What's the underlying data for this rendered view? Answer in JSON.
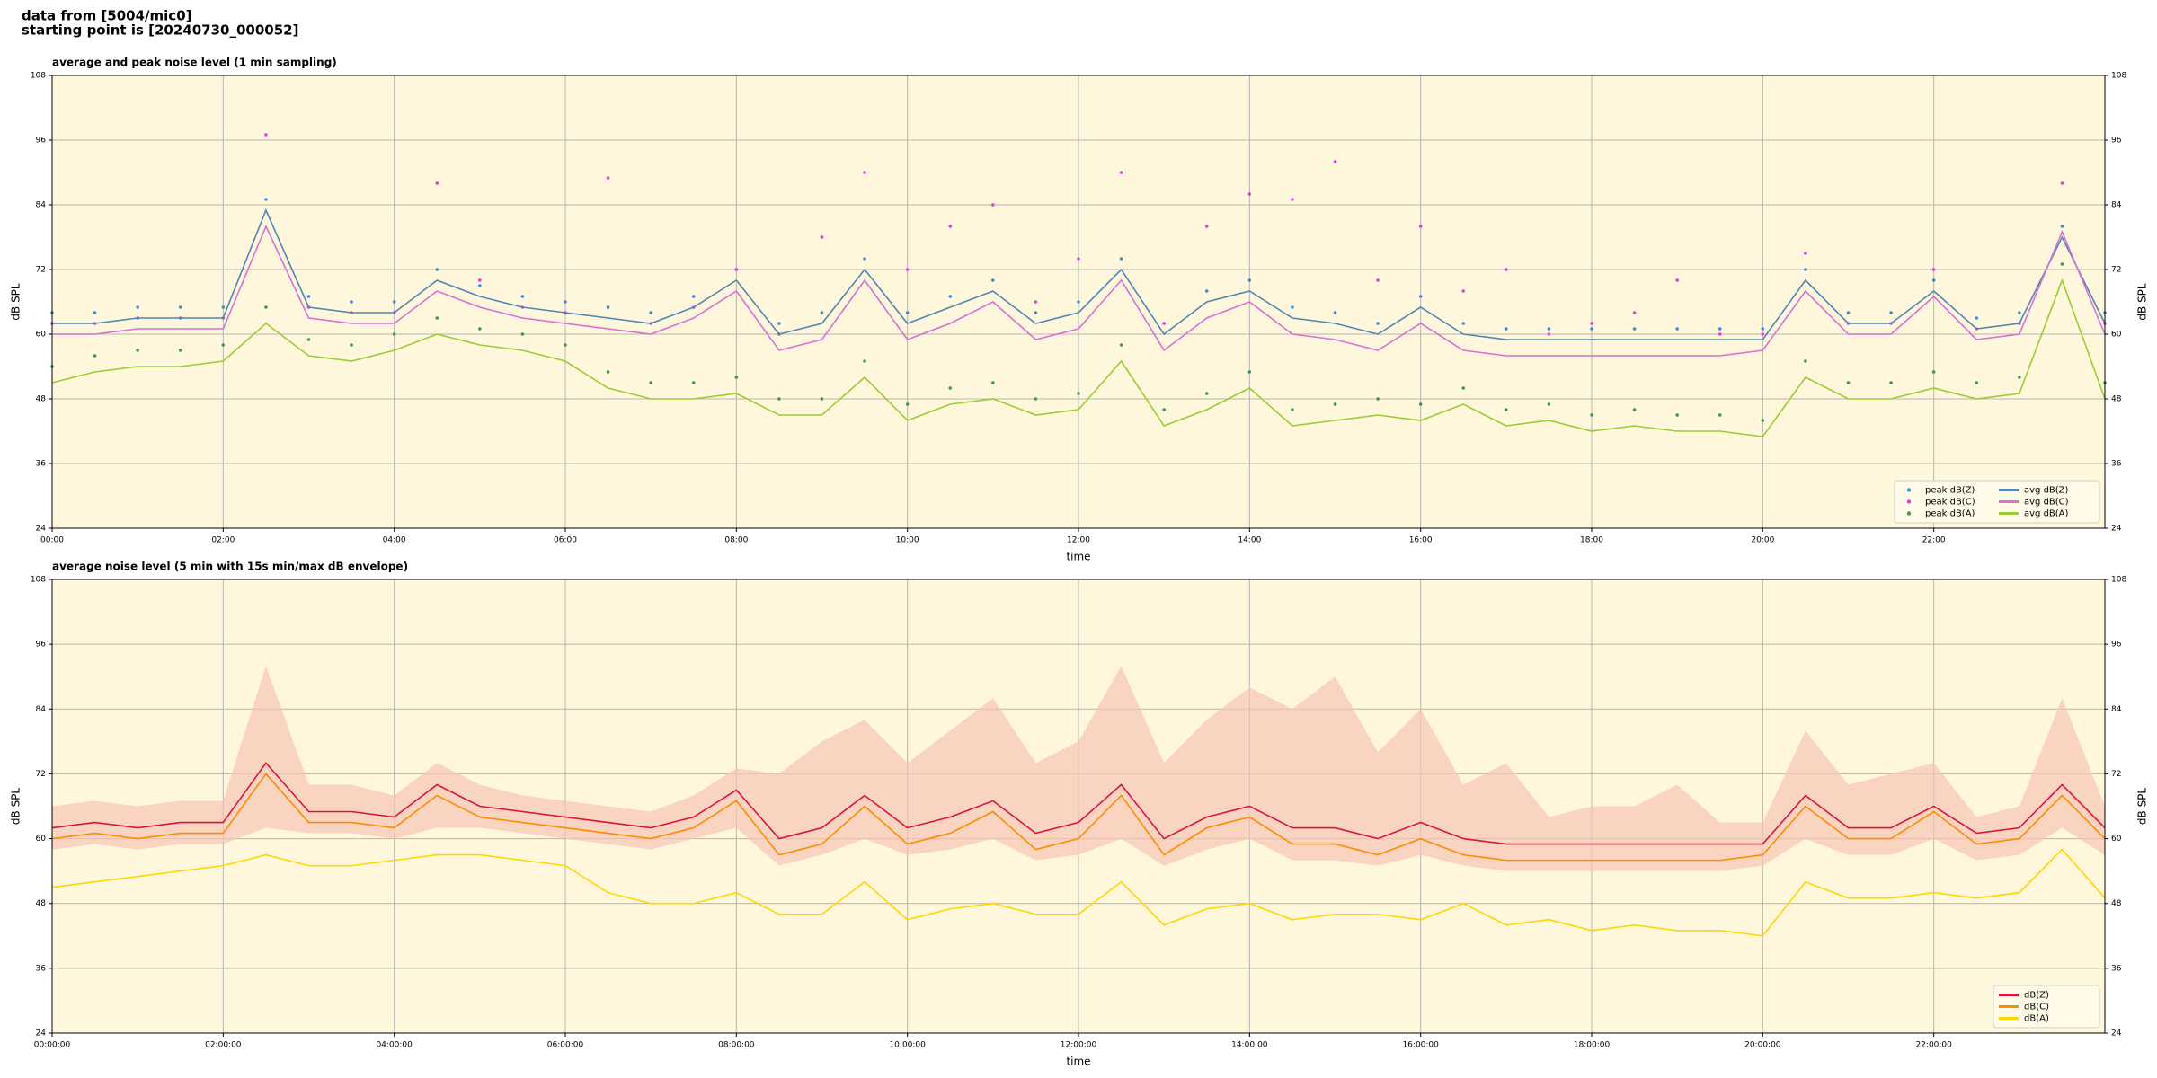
{
  "header": {
    "lines": [
      "data from [5004/mic0]",
      "starting point is [20240730_000052]"
    ]
  },
  "chart_data": [
    {
      "type": "line",
      "title": "average and peak noise level (1 min sampling)",
      "x_label": "time",
      "y_label": "dB SPL",
      "x": [
        0,
        0.5,
        1,
        1.5,
        2,
        2.5,
        3,
        3.5,
        4,
        4.5,
        5,
        5.5,
        6,
        6.5,
        7,
        7.5,
        8,
        8.5,
        9,
        9.5,
        10,
        10.5,
        11,
        11.5,
        12,
        12.5,
        13,
        13.5,
        14,
        14.5,
        15,
        15.5,
        16,
        16.5,
        17,
        17.5,
        18,
        18.5,
        19,
        19.5,
        20,
        20.5,
        21,
        21.5,
        22,
        22.5,
        23,
        23.5,
        24
      ],
      "xlim": [
        0,
        24
      ],
      "xticks": [
        {
          "value": 0,
          "label": "00:00"
        },
        {
          "value": 2,
          "label": "02:00"
        },
        {
          "value": 4,
          "label": "04:00"
        },
        {
          "value": 6,
          "label": "06:00"
        },
        {
          "value": 8,
          "label": "08:00"
        },
        {
          "value": 10,
          "label": "10:00"
        },
        {
          "value": 12,
          "label": "12:00"
        },
        {
          "value": 14,
          "label": "14:00"
        },
        {
          "value": 16,
          "label": "16:00"
        },
        {
          "value": 18,
          "label": "18:00"
        },
        {
          "value": 20,
          "label": "20:00"
        },
        {
          "value": 22,
          "label": "22:00"
        }
      ],
      "ylim": [
        24,
        108
      ],
      "yticks": [
        24,
        36,
        48,
        60,
        72,
        84,
        96,
        108
      ],
      "grid": true,
      "legend": "lower right",
      "legend_columns": 2,
      "series": [
        {
          "name": "peak dB(Z)",
          "mode": "markers",
          "color": "#3a8fd8",
          "values": [
            64,
            64,
            65,
            65,
            65,
            85,
            67,
            66,
            66,
            72,
            69,
            67,
            66,
            65,
            64,
            67,
            72,
            62,
            64,
            74,
            64,
            67,
            70,
            64,
            66,
            74,
            62,
            68,
            70,
            65,
            64,
            62,
            67,
            62,
            61,
            61,
            61,
            61,
            61,
            61,
            61,
            72,
            64,
            64,
            70,
            63,
            64,
            80,
            64
          ]
        },
        {
          "name": "peak dB(C)",
          "mode": "markers",
          "color": "#e040e0",
          "values": [
            62,
            62,
            63,
            63,
            63,
            97,
            65,
            64,
            64,
            88,
            70,
            65,
            64,
            89,
            62,
            65,
            72,
            60,
            78,
            90,
            72,
            80,
            84,
            66,
            74,
            90,
            62,
            80,
            86,
            85,
            92,
            70,
            80,
            68,
            72,
            60,
            62,
            64,
            70,
            60,
            60,
            75,
            62,
            62,
            72,
            61,
            62,
            88,
            62
          ]
        },
        {
          "name": "peak dB(A)",
          "mode": "markers",
          "color": "#3a9a5a",
          "values": [
            54,
            56,
            57,
            57,
            58,
            65,
            59,
            58,
            60,
            63,
            61,
            60,
            58,
            53,
            51,
            51,
            52,
            48,
            48,
            55,
            47,
            50,
            51,
            48,
            49,
            58,
            46,
            49,
            53,
            46,
            47,
            48,
            47,
            50,
            46,
            47,
            45,
            46,
            45,
            45,
            44,
            55,
            51,
            51,
            53,
            51,
            52,
            73,
            51
          ]
        },
        {
          "name": "avg dB(Z)",
          "mode": "lines",
          "color": "#4f86b4",
          "values": [
            62,
            62,
            63,
            63,
            63,
            83,
            65,
            64,
            64,
            70,
            67,
            65,
            64,
            63,
            62,
            65,
            70,
            60,
            62,
            72,
            62,
            65,
            68,
            62,
            64,
            72,
            60,
            66,
            68,
            63,
            62,
            60,
            65,
            60,
            59,
            59,
            59,
            59,
            59,
            59,
            59,
            70,
            62,
            62,
            68,
            61,
            62,
            78,
            62
          ]
        },
        {
          "name": "avg dB(C)",
          "mode": "lines",
          "color": "#da6fd6",
          "values": [
            60,
            60,
            61,
            61,
            61,
            80,
            63,
            62,
            62,
            68,
            65,
            63,
            62,
            61,
            60,
            63,
            68,
            57,
            59,
            70,
            59,
            62,
            66,
            59,
            61,
            70,
            57,
            63,
            66,
            60,
            59,
            57,
            62,
            57,
            56,
            56,
            56,
            56,
            56,
            56,
            57,
            68,
            60,
            60,
            67,
            59,
            60,
            79,
            60
          ]
        },
        {
          "name": "avg dB(A)",
          "mode": "lines",
          "color": "#9acd32",
          "values": [
            51,
            53,
            54,
            54,
            55,
            62,
            56,
            55,
            57,
            60,
            58,
            57,
            55,
            50,
            48,
            48,
            49,
            45,
            45,
            52,
            44,
            47,
            48,
            45,
            46,
            55,
            43,
            46,
            50,
            43,
            44,
            45,
            44,
            47,
            43,
            44,
            42,
            43,
            42,
            42,
            41,
            52,
            48,
            48,
            50,
            48,
            49,
            70,
            48
          ]
        }
      ]
    },
    {
      "type": "line",
      "title": "average noise level (5 min with 15s min/max dB envelope)",
      "x_label": "time",
      "y_label": "dB SPL",
      "x": [
        0,
        0.5,
        1,
        1.5,
        2,
        2.5,
        3,
        3.5,
        4,
        4.5,
        5,
        5.5,
        6,
        6.5,
        7,
        7.5,
        8,
        8.5,
        9,
        9.5,
        10,
        10.5,
        11,
        11.5,
        12,
        12.5,
        13,
        13.5,
        14,
        14.5,
        15,
        15.5,
        16,
        16.5,
        17,
        17.5,
        18,
        18.5,
        19,
        19.5,
        20,
        20.5,
        21,
        21.5,
        22,
        22.5,
        23,
        23.5,
        24
      ],
      "xlim": [
        0,
        24
      ],
      "xticks": [
        {
          "value": 0,
          "label": "00:00:00"
        },
        {
          "value": 2,
          "label": "02:00:00"
        },
        {
          "value": 4,
          "label": "04:00:00"
        },
        {
          "value": 6,
          "label": "06:00:00"
        },
        {
          "value": 8,
          "label": "08:00:00"
        },
        {
          "value": 10,
          "label": "10:00:00"
        },
        {
          "value": 12,
          "label": "12:00:00"
        },
        {
          "value": 14,
          "label": "14:00:00"
        },
        {
          "value": 16,
          "label": "16:00:00"
        },
        {
          "value": 18,
          "label": "18:00:00"
        },
        {
          "value": 20,
          "label": "20:00:00"
        },
        {
          "value": 22,
          "label": "22:00:00"
        }
      ],
      "ylim": [
        24,
        108
      ],
      "yticks": [
        24,
        36,
        48,
        60,
        72,
        84,
        96,
        108
      ],
      "grid": true,
      "legend": "lower right",
      "legend_columns": 1,
      "envelope": {
        "color": "#f7c4b4",
        "max": [
          66,
          67,
          66,
          67,
          67,
          92,
          70,
          70,
          68,
          74,
          70,
          68,
          67,
          66,
          65,
          68,
          73,
          72,
          78,
          82,
          74,
          80,
          86,
          74,
          78,
          92,
          74,
          82,
          88,
          84,
          90,
          76,
          84,
          70,
          74,
          64,
          66,
          66,
          70,
          63,
          63,
          80,
          70,
          72,
          74,
          64,
          66,
          86,
          66
        ],
        "min": [
          58,
          59,
          58,
          59,
          59,
          62,
          61,
          61,
          60,
          62,
          62,
          61,
          60,
          59,
          58,
          60,
          62,
          55,
          57,
          60,
          57,
          58,
          60,
          56,
          57,
          60,
          55,
          58,
          60,
          56,
          56,
          55,
          57,
          55,
          54,
          54,
          54,
          54,
          54,
          54,
          55,
          60,
          57,
          57,
          60,
          56,
          57,
          62,
          57
        ]
      },
      "series": [
        {
          "name": "dB(Z)",
          "mode": "lines",
          "color": "#dc143c",
          "values": [
            62,
            63,
            62,
            63,
            63,
            74,
            65,
            65,
            64,
            70,
            66,
            65,
            64,
            63,
            62,
            64,
            69,
            60,
            62,
            68,
            62,
            64,
            67,
            61,
            63,
            70,
            60,
            64,
            66,
            62,
            62,
            60,
            63,
            60,
            59,
            59,
            59,
            59,
            59,
            59,
            59,
            68,
            62,
            62,
            66,
            61,
            62,
            70,
            62
          ]
        },
        {
          "name": "dB(C)",
          "mode": "lines",
          "color": "#ff8c00",
          "values": [
            60,
            61,
            60,
            61,
            61,
            72,
            63,
            63,
            62,
            68,
            64,
            63,
            62,
            61,
            60,
            62,
            67,
            57,
            59,
            66,
            59,
            61,
            65,
            58,
            60,
            68,
            57,
            62,
            64,
            59,
            59,
            57,
            60,
            57,
            56,
            56,
            56,
            56,
            56,
            56,
            57,
            66,
            60,
            60,
            65,
            59,
            60,
            68,
            60
          ]
        },
        {
          "name": "dB(A)",
          "mode": "lines",
          "color": "#ffd700",
          "values": [
            51,
            52,
            53,
            54,
            55,
            57,
            55,
            55,
            56,
            57,
            57,
            56,
            55,
            50,
            48,
            48,
            50,
            46,
            46,
            52,
            45,
            47,
            48,
            46,
            46,
            52,
            44,
            47,
            48,
            45,
            46,
            46,
            45,
            48,
            44,
            45,
            43,
            44,
            43,
            43,
            42,
            52,
            49,
            49,
            50,
            49,
            50,
            58,
            49
          ]
        }
      ]
    }
  ]
}
